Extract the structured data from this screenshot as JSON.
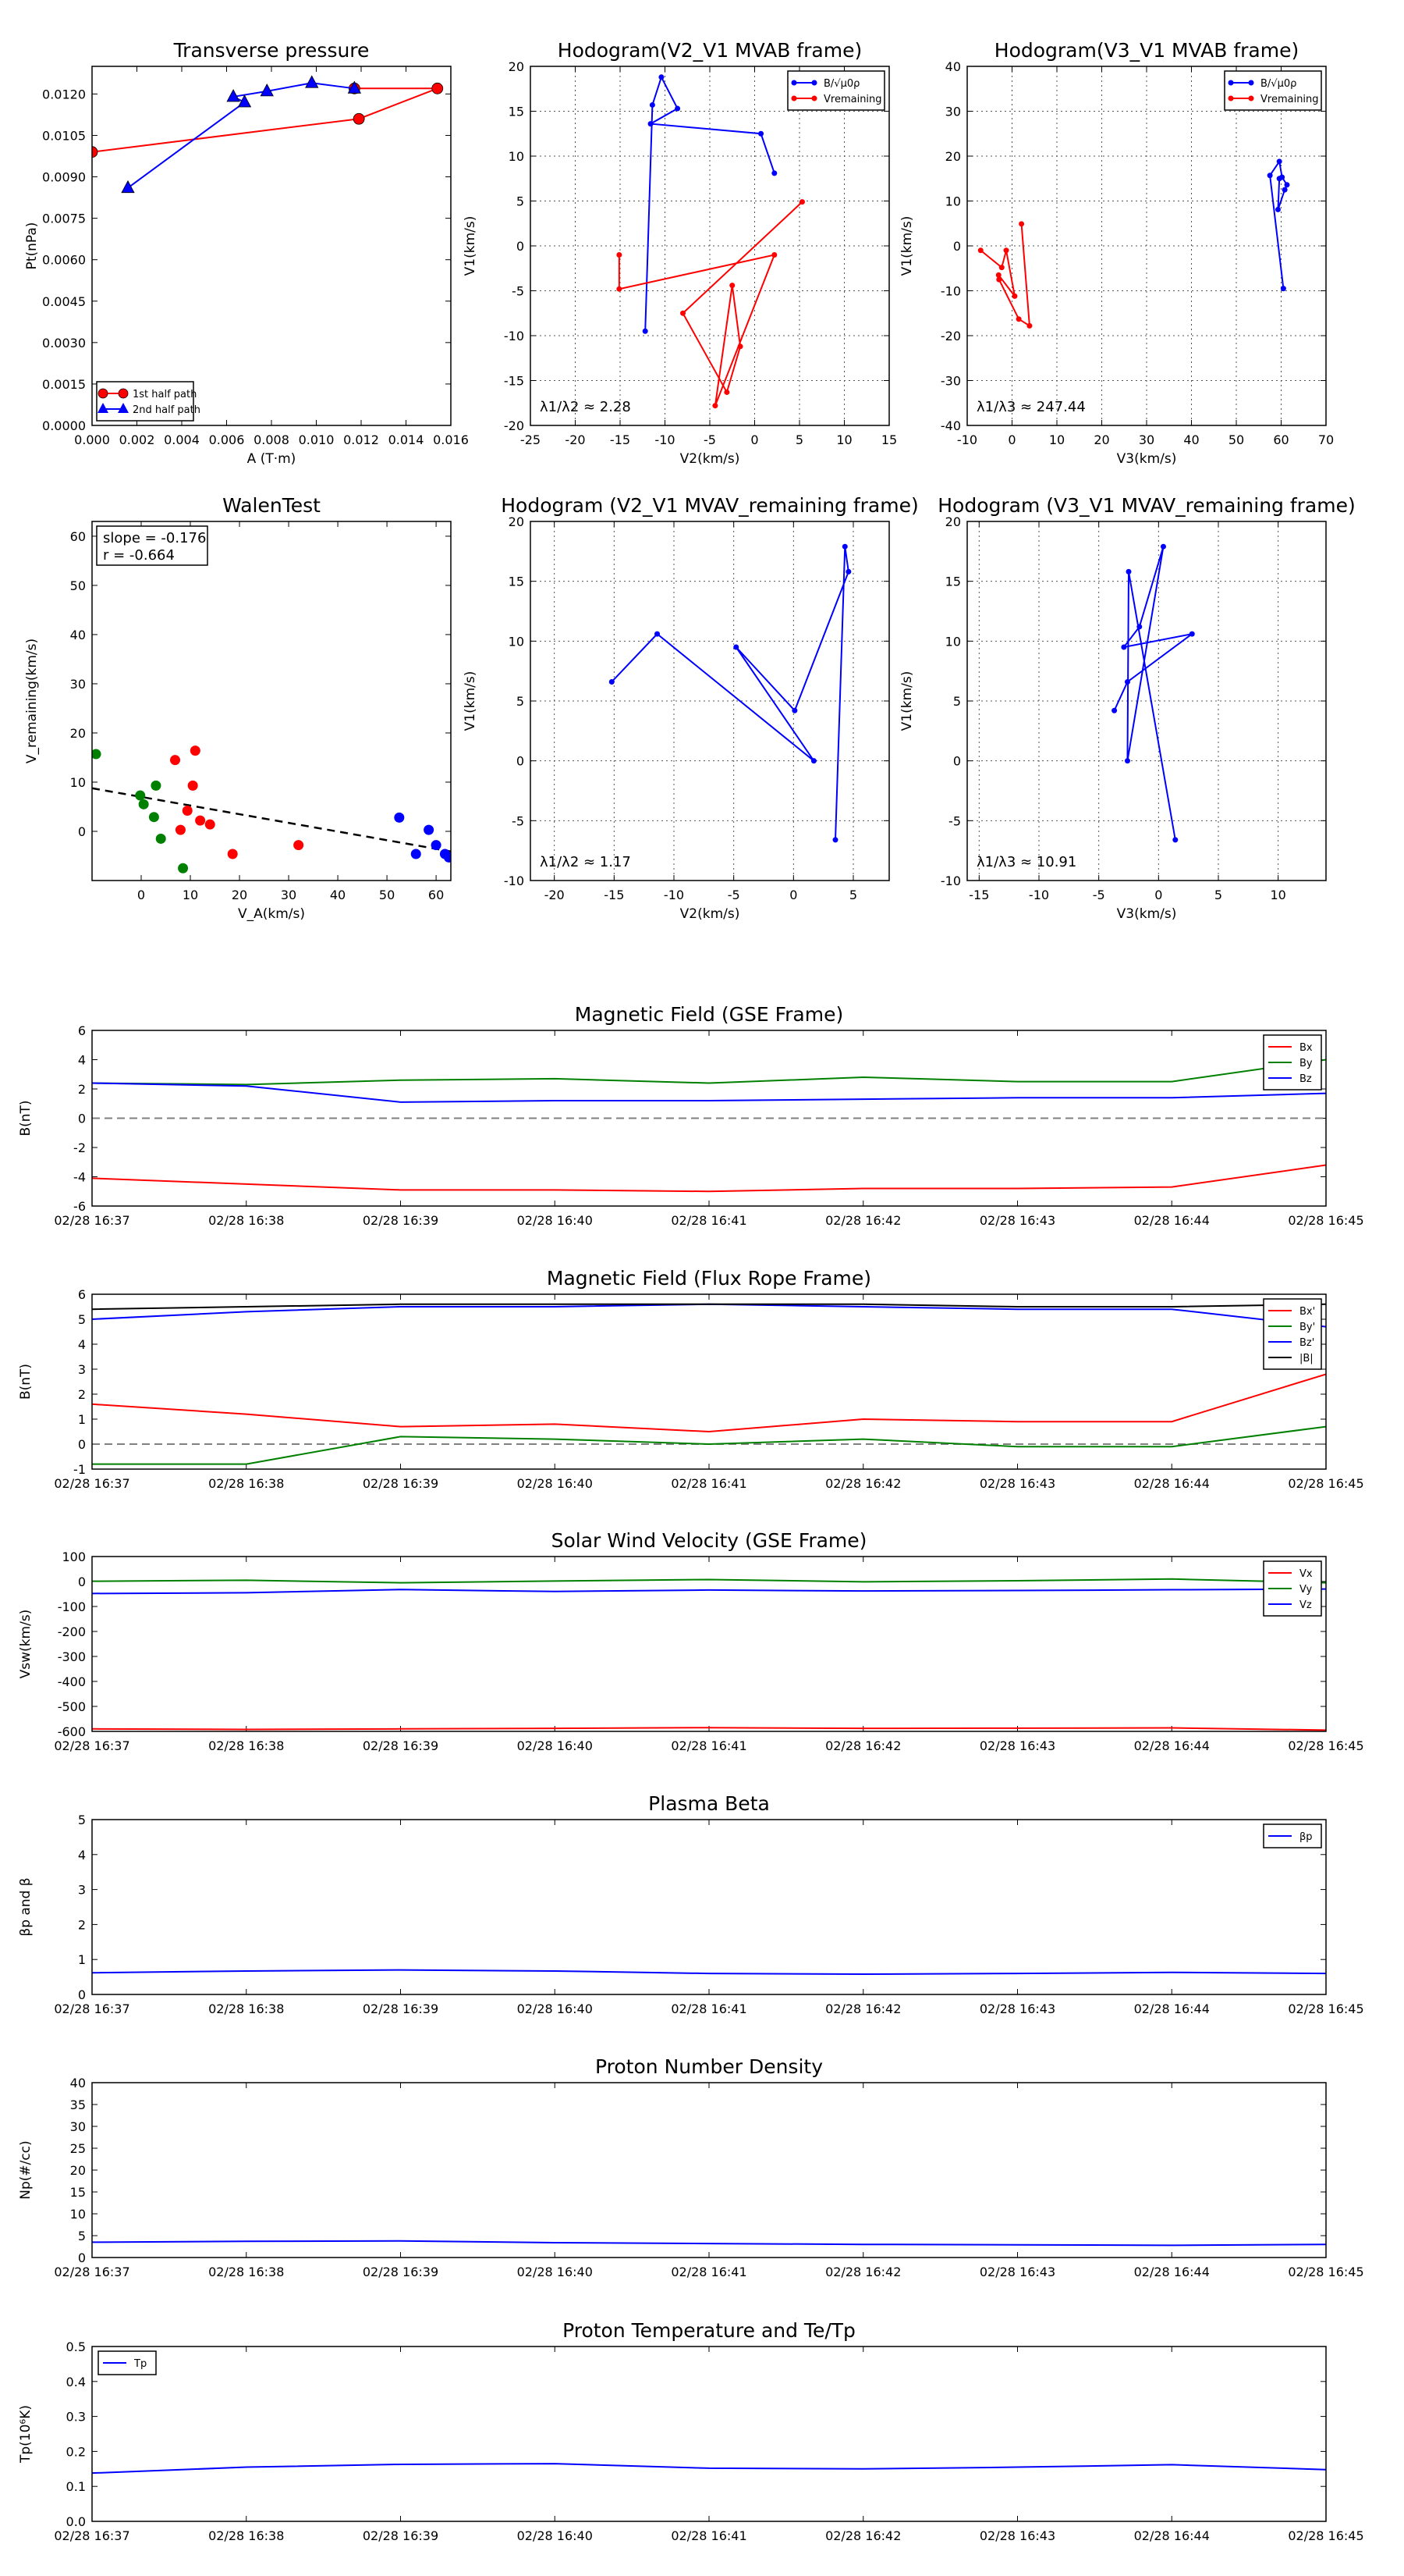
{
  "colors": {
    "red": "#ff0000",
    "green": "#008000",
    "blue": "#0000ff",
    "black": "#000000",
    "grid": "#555555",
    "zero": "#808080"
  },
  "time_ticks": [
    "02/28 16:37",
    "02/28 16:38",
    "02/28 16:39",
    "02/28 16:40",
    "02/28 16:41",
    "02/28 16:42",
    "02/28 16:43",
    "02/28 16:44",
    "02/28 16:45"
  ],
  "chart_data": [
    {
      "type": "line",
      "title": "Transverse pressure",
      "xlabel": "A (T·m)",
      "ylabel": "Pt(nPa)",
      "xlim": [
        0,
        0.016
      ],
      "ylim": [
        0,
        0.013
      ],
      "xticks": [
        0.0,
        0.002,
        0.004,
        0.006,
        0.008,
        0.01,
        0.012,
        0.014,
        0.016
      ],
      "xtick_decimals": 3,
      "yticks": [
        0.0,
        0.0015,
        0.003,
        0.0045,
        0.006,
        0.0075,
        0.009,
        0.0105,
        0.012
      ],
      "ytick_decimals": 4,
      "legend_loc": "lower-left",
      "series": [
        {
          "name": "1st half path",
          "color": "red",
          "marker": "circle",
          "x": [
            0.0,
            0.0119,
            0.0154,
            0.0117
          ],
          "y": [
            0.0099,
            0.0111,
            0.0122,
            0.0122
          ]
        },
        {
          "name": "2nd half path",
          "color": "blue",
          "marker": "triangle",
          "x": [
            0.0016,
            0.0068,
            0.0063,
            0.0078,
            0.0098,
            0.0117
          ],
          "y": [
            0.0086,
            0.0117,
            0.0119,
            0.0121,
            0.0124,
            0.0122
          ]
        }
      ]
    },
    {
      "type": "line",
      "title": "Hodogram(V2_V1 MVAB frame)",
      "xlabel": "V2(km/s)",
      "ylabel": "V1(km/s)",
      "xlim": [
        -25,
        15
      ],
      "ylim": [
        -20,
        20
      ],
      "xticks": [
        -25,
        -20,
        -15,
        -10,
        -5,
        0,
        5,
        10,
        15
      ],
      "yticks": [
        -20,
        -15,
        -10,
        -5,
        0,
        5,
        10,
        15,
        20
      ],
      "grid": true,
      "legend_loc": "upper-right",
      "annotation": "λ1/λ2 ≈ 2.28",
      "series": [
        {
          "name": "B/√μ0ρ",
          "color": "blue",
          "marker": "dot",
          "x": [
            -12.2,
            -11.4,
            -10.4,
            -8.6,
            -11.6,
            0.7,
            2.2
          ],
          "y": [
            -9.5,
            15.7,
            18.8,
            15.3,
            13.6,
            12.5,
            8.1
          ]
        },
        {
          "name": "Vremaining",
          "color": "red",
          "marker": "dot",
          "x": [
            -15.1,
            -15.1,
            2.2,
            -4.4,
            -2.5,
            -1.6,
            -3.1,
            -8.0,
            5.3
          ],
          "y": [
            -1.0,
            -4.8,
            -1.0,
            -17.8,
            -4.4,
            -11.2,
            -16.3,
            -7.5,
            4.9
          ]
        }
      ]
    },
    {
      "type": "line",
      "title": "Hodogram(V3_V1 MVAB frame)",
      "xlabel": "V3(km/s)",
      "ylabel": "V1(km/s)",
      "xlim": [
        -10,
        70
      ],
      "ylim": [
        -40,
        40
      ],
      "xticks": [
        -10,
        0,
        10,
        20,
        30,
        40,
        50,
        60,
        70
      ],
      "yticks": [
        -40,
        -30,
        -20,
        -10,
        0,
        10,
        20,
        30,
        40
      ],
      "grid": true,
      "legend_loc": "upper-right",
      "annotation": "λ1/λ3 ≈ 247.44",
      "series": [
        {
          "name": "B/√μ0ρ",
          "color": "blue",
          "marker": "dot",
          "x": [
            60.5,
            57.5,
            59.6,
            60.2,
            61.3,
            60.8,
            59.3,
            59.6
          ],
          "y": [
            -9.5,
            15.7,
            18.8,
            15.3,
            13.6,
            12.5,
            8.1,
            15.0
          ]
        },
        {
          "name": "Vremaining",
          "color": "red",
          "marker": "dot",
          "x": [
            -7.0,
            -2.3,
            -1.3,
            0.6,
            -3.0,
            -2.9,
            1.5,
            3.9,
            2.1
          ],
          "y": [
            -1.0,
            -4.8,
            -1.0,
            -11.2,
            -6.5,
            -7.5,
            -16.3,
            -17.8,
            4.9
          ]
        }
      ]
    },
    {
      "type": "scatter",
      "title": "WalenTest",
      "xlabel": "V_A(km/s)",
      "ylabel": "V_remaining(km/s)",
      "xlim": [
        -10,
        63
      ],
      "ylim": [
        -10,
        63
      ],
      "xticks": [
        0,
        10,
        20,
        30,
        40,
        50,
        60
      ],
      "yticks": [
        0,
        10,
        20,
        30,
        40,
        50,
        60
      ],
      "annotation": [
        "slope = -0.176",
        "r = -0.664"
      ],
      "fit": {
        "slope": -0.176,
        "intercept": 7.0,
        "style": "dashed"
      },
      "series": [
        {
          "color": "green",
          "x": [
            -9.2,
            -0.2,
            0.5,
            2.6,
            3.0,
            4.0,
            8.5
          ],
          "y": [
            15.7,
            7.3,
            5.5,
            2.9,
            9.3,
            -1.5,
            -7.5
          ]
        },
        {
          "color": "red",
          "x": [
            6.9,
            8.0,
            9.4,
            10.5,
            11.0,
            12.0,
            14.0,
            18.6,
            32.0
          ],
          "y": [
            14.5,
            0.3,
            4.2,
            9.3,
            16.4,
            2.2,
            1.4,
            -4.6,
            -2.8
          ]
        },
        {
          "color": "blue",
          "x": [
            52.5,
            55.9,
            58.5,
            60.0,
            61.8,
            62.6
          ],
          "y": [
            2.8,
            -4.6,
            0.3,
            -2.8,
            -4.6,
            -5.3
          ]
        }
      ]
    },
    {
      "type": "line",
      "title": "Hodogram (V2_V1 MVAV_remaining frame)",
      "xlabel": "V2(km/s)",
      "ylabel": "V1(km/s)",
      "xlim": [
        -22,
        8
      ],
      "ylim": [
        -10,
        20
      ],
      "xticks": [
        -20,
        -15,
        -10,
        -5,
        0,
        5
      ],
      "yticks": [
        -10,
        -5,
        0,
        5,
        10,
        15,
        20
      ],
      "grid": true,
      "annotation": "λ1/λ2 ≈ 1.17",
      "series": [
        {
          "color": "blue",
          "marker": "dot",
          "x": [
            -15.2,
            -11.4,
            1.7,
            -4.8,
            0.1,
            4.6,
            4.3,
            3.5
          ],
          "y": [
            6.6,
            10.6,
            0.0,
            9.5,
            4.2,
            15.8,
            17.9,
            -6.6
          ]
        }
      ]
    },
    {
      "type": "line",
      "title": "Hodogram (V3_V1 MVAV_remaining frame)",
      "xlabel": "V3(km/s)",
      "ylabel": "V1(km/s)",
      "xlim": [
        -16,
        14
      ],
      "ylim": [
        -10,
        20
      ],
      "xticks": [
        -15,
        -10,
        -5,
        0,
        5,
        10
      ],
      "yticks": [
        -10,
        -5,
        0,
        5,
        10,
        15,
        20
      ],
      "grid": true,
      "annotation": "λ1/λ3 ≈ 10.91",
      "series": [
        {
          "color": "blue",
          "marker": "dot",
          "x": [
            -3.7,
            -2.6,
            2.8,
            -2.9,
            -1.6,
            0.4,
            -2.6,
            -2.5,
            1.4
          ],
          "y": [
            4.2,
            6.6,
            10.6,
            9.5,
            11.2,
            17.9,
            0.0,
            15.8,
            -6.6
          ]
        }
      ]
    },
    {
      "type": "line",
      "title": "Magnetic Field (GSE Frame)",
      "ylabel": "B(nT)",
      "xlim": [
        0,
        8
      ],
      "ylim": [
        -6,
        6
      ],
      "yticks": [
        -6,
        -4,
        -2,
        0,
        2,
        4,
        6
      ],
      "zero_line": true,
      "legend_loc": "upper-right",
      "series": [
        {
          "name": "Bx",
          "color": "red",
          "x": [
            0,
            1,
            2,
            3,
            4,
            5,
            6,
            7,
            8
          ],
          "y": [
            -4.1,
            -4.5,
            -4.9,
            -4.9,
            -5.0,
            -4.8,
            -4.8,
            -4.7,
            -3.2
          ]
        },
        {
          "name": "By",
          "color": "green",
          "x": [
            0,
            1,
            2,
            3,
            4,
            5,
            6,
            7,
            8
          ],
          "y": [
            2.4,
            2.3,
            2.6,
            2.7,
            2.4,
            2.8,
            2.5,
            2.5,
            4.0
          ]
        },
        {
          "name": "Bz",
          "color": "blue",
          "x": [
            0,
            1,
            2,
            3,
            4,
            5,
            6,
            7,
            8
          ],
          "y": [
            2.4,
            2.2,
            1.1,
            1.2,
            1.2,
            1.3,
            1.4,
            1.4,
            1.7
          ]
        }
      ]
    },
    {
      "type": "line",
      "title": "Magnetic Field (Flux Rope Frame)",
      "ylabel": "B(nT)",
      "xlim": [
        0,
        8
      ],
      "ylim": [
        -1,
        6
      ],
      "yticks": [
        -1,
        0,
        1,
        2,
        3,
        4,
        5,
        6
      ],
      "zero_line": true,
      "legend_loc": "upper-right",
      "series": [
        {
          "name": "Bx'",
          "color": "red",
          "x": [
            0,
            1,
            2,
            3,
            4,
            5,
            6,
            7,
            8
          ],
          "y": [
            1.6,
            1.2,
            0.7,
            0.8,
            0.5,
            1.0,
            0.9,
            0.9,
            2.8
          ]
        },
        {
          "name": "By'",
          "color": "green",
          "x": [
            0,
            1,
            2,
            3,
            4,
            5,
            6,
            7,
            8
          ],
          "y": [
            -0.8,
            -0.8,
            0.3,
            0.2,
            0.0,
            0.2,
            -0.1,
            -0.1,
            0.7
          ]
        },
        {
          "name": "Bz'",
          "color": "blue",
          "x": [
            0,
            1,
            2,
            3,
            4,
            5,
            6,
            7,
            8
          ],
          "y": [
            5.0,
            5.3,
            5.5,
            5.5,
            5.6,
            5.5,
            5.4,
            5.4,
            4.7
          ]
        },
        {
          "name": "|B|",
          "color": "black",
          "x": [
            0,
            1,
            2,
            3,
            4,
            5,
            6,
            7,
            8
          ],
          "y": [
            5.4,
            5.5,
            5.6,
            5.6,
            5.6,
            5.6,
            5.5,
            5.5,
            5.6
          ]
        }
      ]
    },
    {
      "type": "line",
      "title": "Solar Wind Velocity (GSE Frame)",
      "ylabel": "Vsw(km/s)",
      "xlim": [
        0,
        8
      ],
      "ylim": [
        -600,
        100
      ],
      "yticks": [
        -600,
        -500,
        -400,
        -300,
        -200,
        -100,
        0,
        100
      ],
      "legend_loc": "upper-right",
      "series": [
        {
          "name": "Vx",
          "color": "red",
          "x": [
            0,
            1,
            2,
            3,
            4,
            5,
            6,
            7,
            8
          ],
          "y": [
            -590,
            -592,
            -590,
            -588,
            -585,
            -588,
            -587,
            -586,
            -595
          ]
        },
        {
          "name": "Vy",
          "color": "green",
          "x": [
            0,
            1,
            2,
            3,
            4,
            5,
            6,
            7,
            8
          ],
          "y": [
            1,
            5,
            -5,
            2,
            8,
            -1,
            3,
            10,
            -5
          ]
        },
        {
          "name": "Vz",
          "color": "blue",
          "x": [
            0,
            1,
            2,
            3,
            4,
            5,
            6,
            7,
            8
          ],
          "y": [
            -48,
            -45,
            -32,
            -40,
            -34,
            -38,
            -36,
            -33,
            -30
          ]
        }
      ]
    },
    {
      "type": "line",
      "title": "Plasma Beta",
      "ylabel": "βp and β",
      "xlim": [
        0,
        8
      ],
      "ylim": [
        0,
        5
      ],
      "yticks": [
        0,
        1,
        2,
        3,
        4,
        5
      ],
      "legend_loc": "upper-right",
      "series": [
        {
          "name": "βp",
          "color": "blue",
          "x": [
            0,
            1,
            2,
            3,
            4,
            5,
            6,
            7,
            8
          ],
          "y": [
            0.62,
            0.67,
            0.7,
            0.67,
            0.6,
            0.58,
            0.6,
            0.63,
            0.6
          ]
        }
      ]
    },
    {
      "type": "line",
      "title": "Proton Number Density",
      "ylabel": "Np(#/cc)",
      "xlim": [
        0,
        8
      ],
      "ylim": [
        0,
        40
      ],
      "yticks": [
        0,
        5,
        10,
        15,
        20,
        25,
        30,
        35,
        40
      ],
      "series": [
        {
          "color": "blue",
          "x": [
            0,
            1,
            2,
            3,
            4,
            5,
            6,
            7,
            8
          ],
          "y": [
            3.5,
            3.7,
            3.8,
            3.4,
            3.2,
            3.0,
            2.9,
            2.8,
            3.0
          ]
        }
      ]
    },
    {
      "type": "line",
      "title": "Proton Temperature and Te/Tp",
      "ylabel": "Tp(10⁶K)",
      "xlim": [
        0,
        8
      ],
      "ylim": [
        0,
        0.5
      ],
      "yticks": [
        0.0,
        0.1,
        0.2,
        0.3,
        0.4,
        0.5
      ],
      "ytick_decimals": 1,
      "legend_loc": "upper-left",
      "series": [
        {
          "name": "Tp",
          "color": "blue",
          "x": [
            0,
            1,
            2,
            3,
            4,
            5,
            6,
            7,
            8
          ],
          "y": [
            0.138,
            0.155,
            0.163,
            0.165,
            0.152,
            0.15,
            0.155,
            0.162,
            0.148
          ]
        }
      ]
    }
  ]
}
